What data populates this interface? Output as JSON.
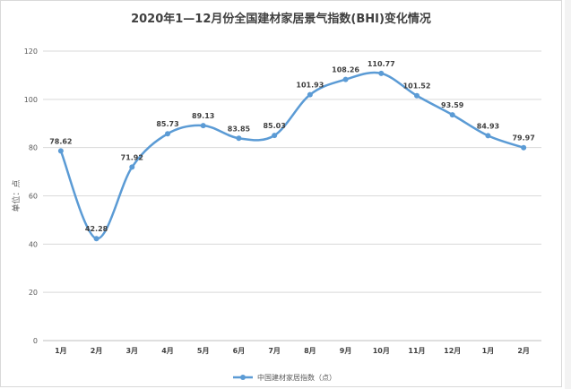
{
  "chart_data": {
    "type": "line",
    "title": "2020年1—12月份全国建材家居景气指数(BHI)变化情况",
    "ylabel": "单位：点",
    "xlabel": "",
    "ylim": [
      0,
      120
    ],
    "yticks": [
      0,
      20,
      40,
      60,
      80,
      100,
      120
    ],
    "grid": true,
    "legend_position": "bottom",
    "categories": [
      "1月",
      "2月",
      "3月",
      "4月",
      "5月",
      "6月",
      "7月",
      "8月",
      "9月",
      "10月",
      "11月",
      "12月",
      "1月",
      "2月"
    ],
    "series": [
      {
        "name": "中国建材家居指数（点）",
        "color": "#5b9bd5",
        "values": [
          78.62,
          42.28,
          71.92,
          85.73,
          89.13,
          83.85,
          85.03,
          101.93,
          108.26,
          110.77,
          101.52,
          93.59,
          84.93,
          79.97
        ]
      }
    ]
  }
}
